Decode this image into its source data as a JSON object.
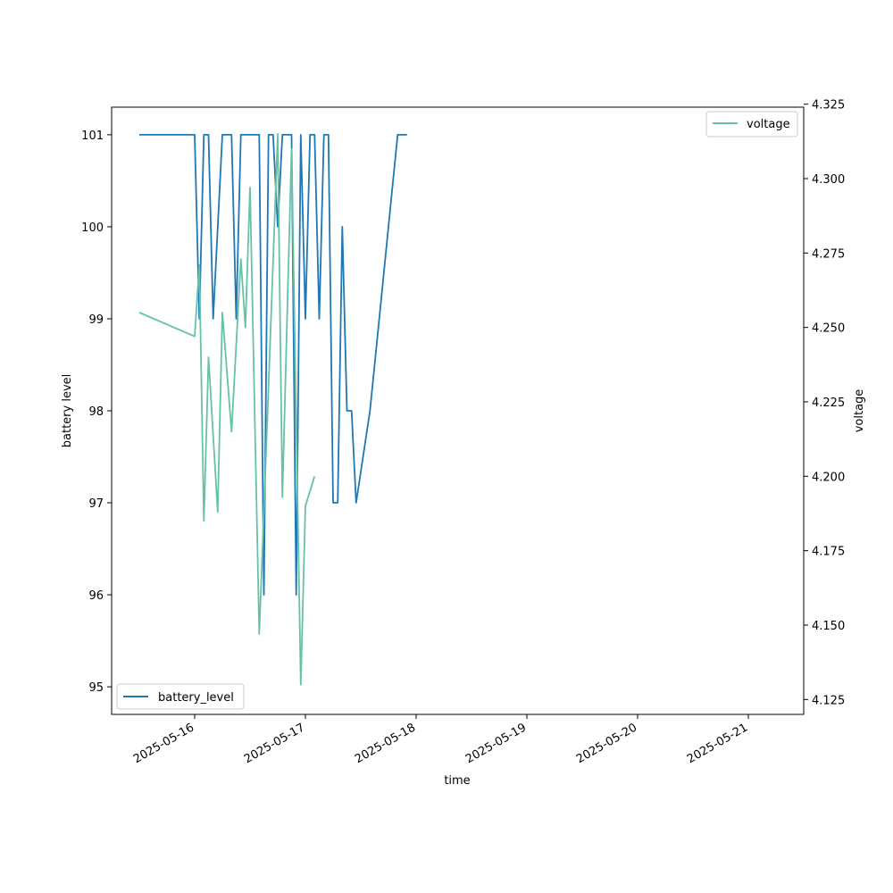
{
  "chart_data": {
    "type": "line",
    "title": "",
    "xlabel": "time",
    "ylabel": "battery level",
    "y2label": "voltage",
    "x_tick_labels": [
      "2025-05-16",
      "2025-05-17",
      "2025-05-18",
      "2025-05-19",
      "2025-05-20",
      "2025-05-21"
    ],
    "x_range": [
      "2025-05-15T06:00",
      "2025-05-21T12:00"
    ],
    "ylim": [
      94.7,
      101.3
    ],
    "y_ticks": [
      95,
      96,
      97,
      98,
      99,
      100,
      101
    ],
    "y2lim": [
      4.12,
      4.324
    ],
    "y2_ticks": [
      4.125,
      4.15,
      4.175,
      4.2,
      4.225,
      4.25,
      4.275,
      4.3,
      4.325
    ],
    "y2_tick_labels": [
      "4.125",
      "4.150",
      "4.175",
      "4.200",
      "4.225",
      "4.250",
      "4.275",
      "4.300",
      "4.325"
    ],
    "grid": false,
    "series": [
      {
        "name": "battery_level",
        "axis": "left",
        "color": "#1f77b4",
        "legend_position": "lower-left",
        "points": [
          [
            "2025-05-15T12:00",
            101
          ],
          [
            "2025-05-16T00:00",
            101
          ],
          [
            "2025-05-16T01:00",
            99
          ],
          [
            "2025-05-16T02:00",
            101
          ],
          [
            "2025-05-16T03:00",
            101
          ],
          [
            "2025-05-16T04:00",
            99
          ],
          [
            "2025-05-16T06:00",
            101
          ],
          [
            "2025-05-16T08:00",
            101
          ],
          [
            "2025-05-16T09:00",
            99
          ],
          [
            "2025-05-16T10:00",
            101
          ],
          [
            "2025-05-16T12:00",
            101
          ],
          [
            "2025-05-16T14:00",
            101
          ],
          [
            "2025-05-16T15:00",
            96
          ],
          [
            "2025-05-16T16:00",
            101
          ],
          [
            "2025-05-16T17:00",
            101
          ],
          [
            "2025-05-16T18:00",
            100
          ],
          [
            "2025-05-16T19:00",
            101
          ],
          [
            "2025-05-16T21:00",
            101
          ],
          [
            "2025-05-16T22:00",
            96
          ],
          [
            "2025-05-16T23:00",
            101
          ],
          [
            "2025-05-17T00:00",
            99
          ],
          [
            "2025-05-17T01:00",
            101
          ],
          [
            "2025-05-17T02:00",
            101
          ],
          [
            "2025-05-17T03:00",
            99
          ],
          [
            "2025-05-17T04:00",
            101
          ],
          [
            "2025-05-17T05:00",
            101
          ],
          [
            "2025-05-17T06:00",
            97
          ],
          [
            "2025-05-17T07:00",
            97
          ],
          [
            "2025-05-17T08:00",
            100
          ],
          [
            "2025-05-17T09:00",
            98
          ],
          [
            "2025-05-17T10:00",
            98
          ],
          [
            "2025-05-17T11:00",
            97
          ],
          [
            "2025-05-17T14:00",
            98
          ],
          [
            "2025-05-17T16:00",
            99
          ],
          [
            "2025-05-17T18:00",
            100
          ],
          [
            "2025-05-17T20:00",
            101
          ],
          [
            "2025-05-17T22:00",
            101
          ]
        ]
      },
      {
        "name": "voltage",
        "axis": "right",
        "color": "#66c2a5",
        "legend_position": "upper-right",
        "points": [
          [
            "2025-05-15T12:00",
            4.255
          ],
          [
            "2025-05-16T00:00",
            4.247
          ],
          [
            "2025-05-16T01:00",
            4.271
          ],
          [
            "2025-05-16T02:00",
            4.185
          ],
          [
            "2025-05-16T03:00",
            4.24
          ],
          [
            "2025-05-16T05:00",
            4.188
          ],
          [
            "2025-05-16T06:00",
            4.255
          ],
          [
            "2025-05-16T08:00",
            4.215
          ],
          [
            "2025-05-16T10:00",
            4.273
          ],
          [
            "2025-05-16T11:00",
            4.25
          ],
          [
            "2025-05-16T12:00",
            4.297
          ],
          [
            "2025-05-16T14:00",
            4.147
          ],
          [
            "2025-05-16T16:00",
            4.23
          ],
          [
            "2025-05-16T18:00",
            4.315
          ],
          [
            "2025-05-16T19:00",
            4.193
          ],
          [
            "2025-05-16T21:00",
            4.31
          ],
          [
            "2025-05-16T23:00",
            4.13
          ],
          [
            "2025-05-17T00:00",
            4.19
          ],
          [
            "2025-05-17T02:00",
            4.2
          ]
        ]
      }
    ]
  }
}
